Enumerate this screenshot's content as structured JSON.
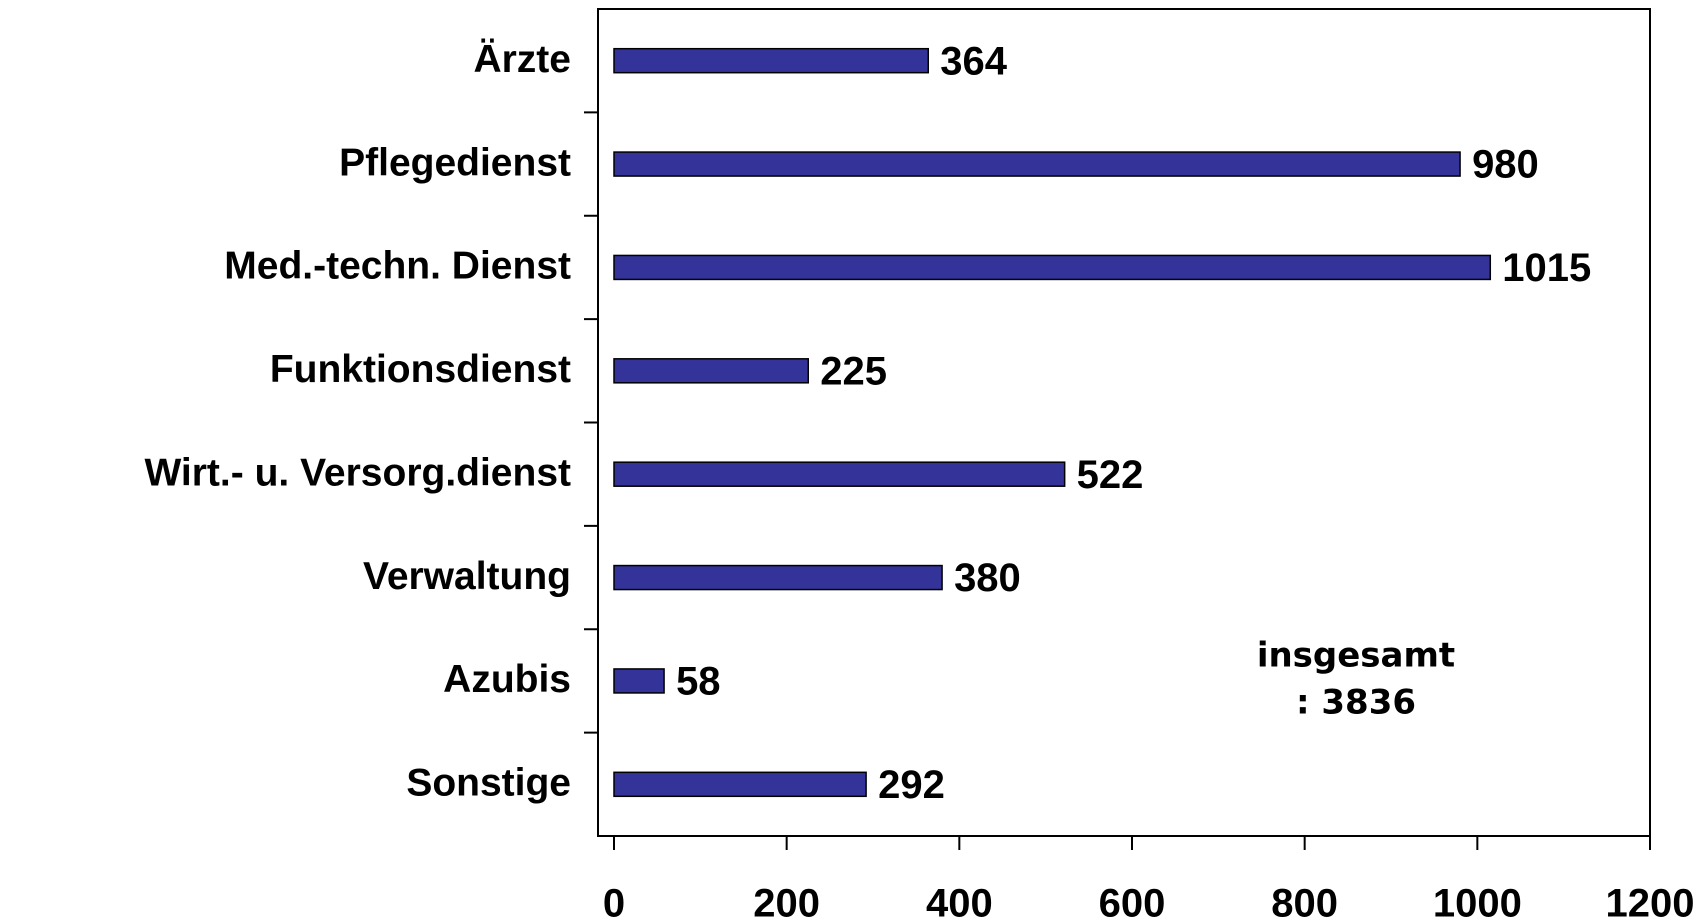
{
  "chart_data": {
    "type": "bar",
    "orientation": "horizontal",
    "categories": [
      "Ärzte",
      "Pflegedienst",
      "Med.-techn. Dienst",
      "Funktionsdienst",
      "Wirt.- u. Versorg.dienst",
      "Verwaltung",
      "Azubis",
      "Sonstige"
    ],
    "values": [
      364,
      980,
      1015,
      225,
      522,
      380,
      58,
      292
    ],
    "color": "#333399",
    "xlim": [
      0,
      1200
    ],
    "xticks": [
      0,
      200,
      400,
      600,
      800,
      1000,
      1200
    ],
    "annotation": [
      "insgesamt",
      ": 3836"
    ]
  }
}
